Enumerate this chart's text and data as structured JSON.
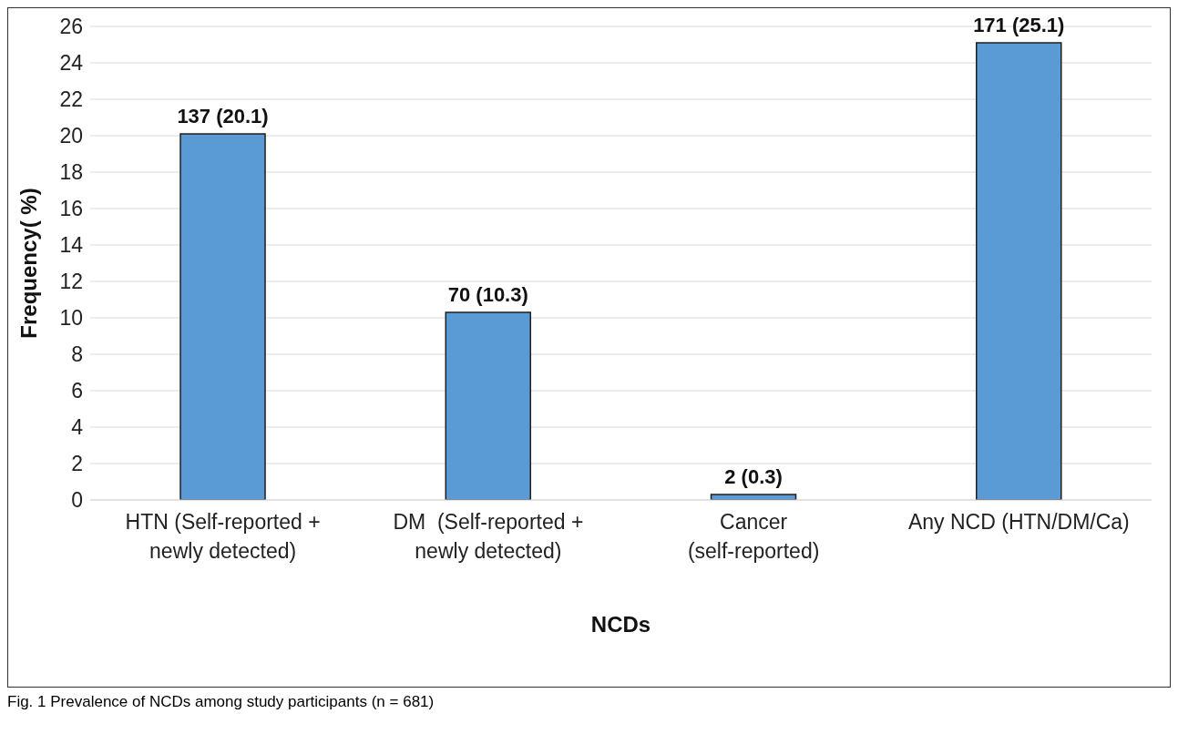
{
  "chart_data": {
    "type": "bar",
    "categories": [
      "HTN (Self-reported + newly detected)",
      "DM  (Self-reported + newly detected)",
      "Cancer (self-reported)",
      "Any NCD (HTN/DM/Ca)"
    ],
    "values": [
      20.1,
      10.3,
      0.3,
      25.1
    ],
    "value_labels": [
      "137 (20.1)",
      "70 (10.3)",
      "2 (0.3)",
      "171 (25.1)"
    ],
    "color": "#5b9bd5",
    "xlabel": "NCDs",
    "ylabel": "Frequency( %)",
    "ylim": [
      0,
      26
    ],
    "yticks": [
      0,
      2,
      4,
      6,
      8,
      10,
      12,
      14,
      16,
      18,
      20,
      22,
      24,
      26
    ],
    "grid": "y",
    "legend": false,
    "annotations": [
      "Fig. 1 Prevalence of NCDs among study participants (n = 681)"
    ]
  }
}
